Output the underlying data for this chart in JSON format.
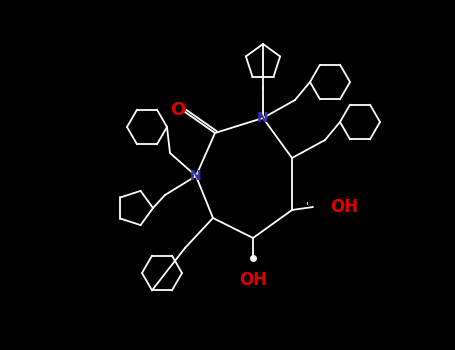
{
  "background_color": "#000000",
  "bond_color": "#ffffff",
  "nitrogen_color": "#3333aa",
  "oxygen_color": "#dd0000",
  "oh_color": "#dd0000",
  "label_O": "O",
  "label_OH1": "OH",
  "label_OH2": "OH",
  "stereo_mark1": "'",
  "stereo_mark2": "●",
  "figsize": [
    4.55,
    3.5
  ],
  "dpi": 100
}
